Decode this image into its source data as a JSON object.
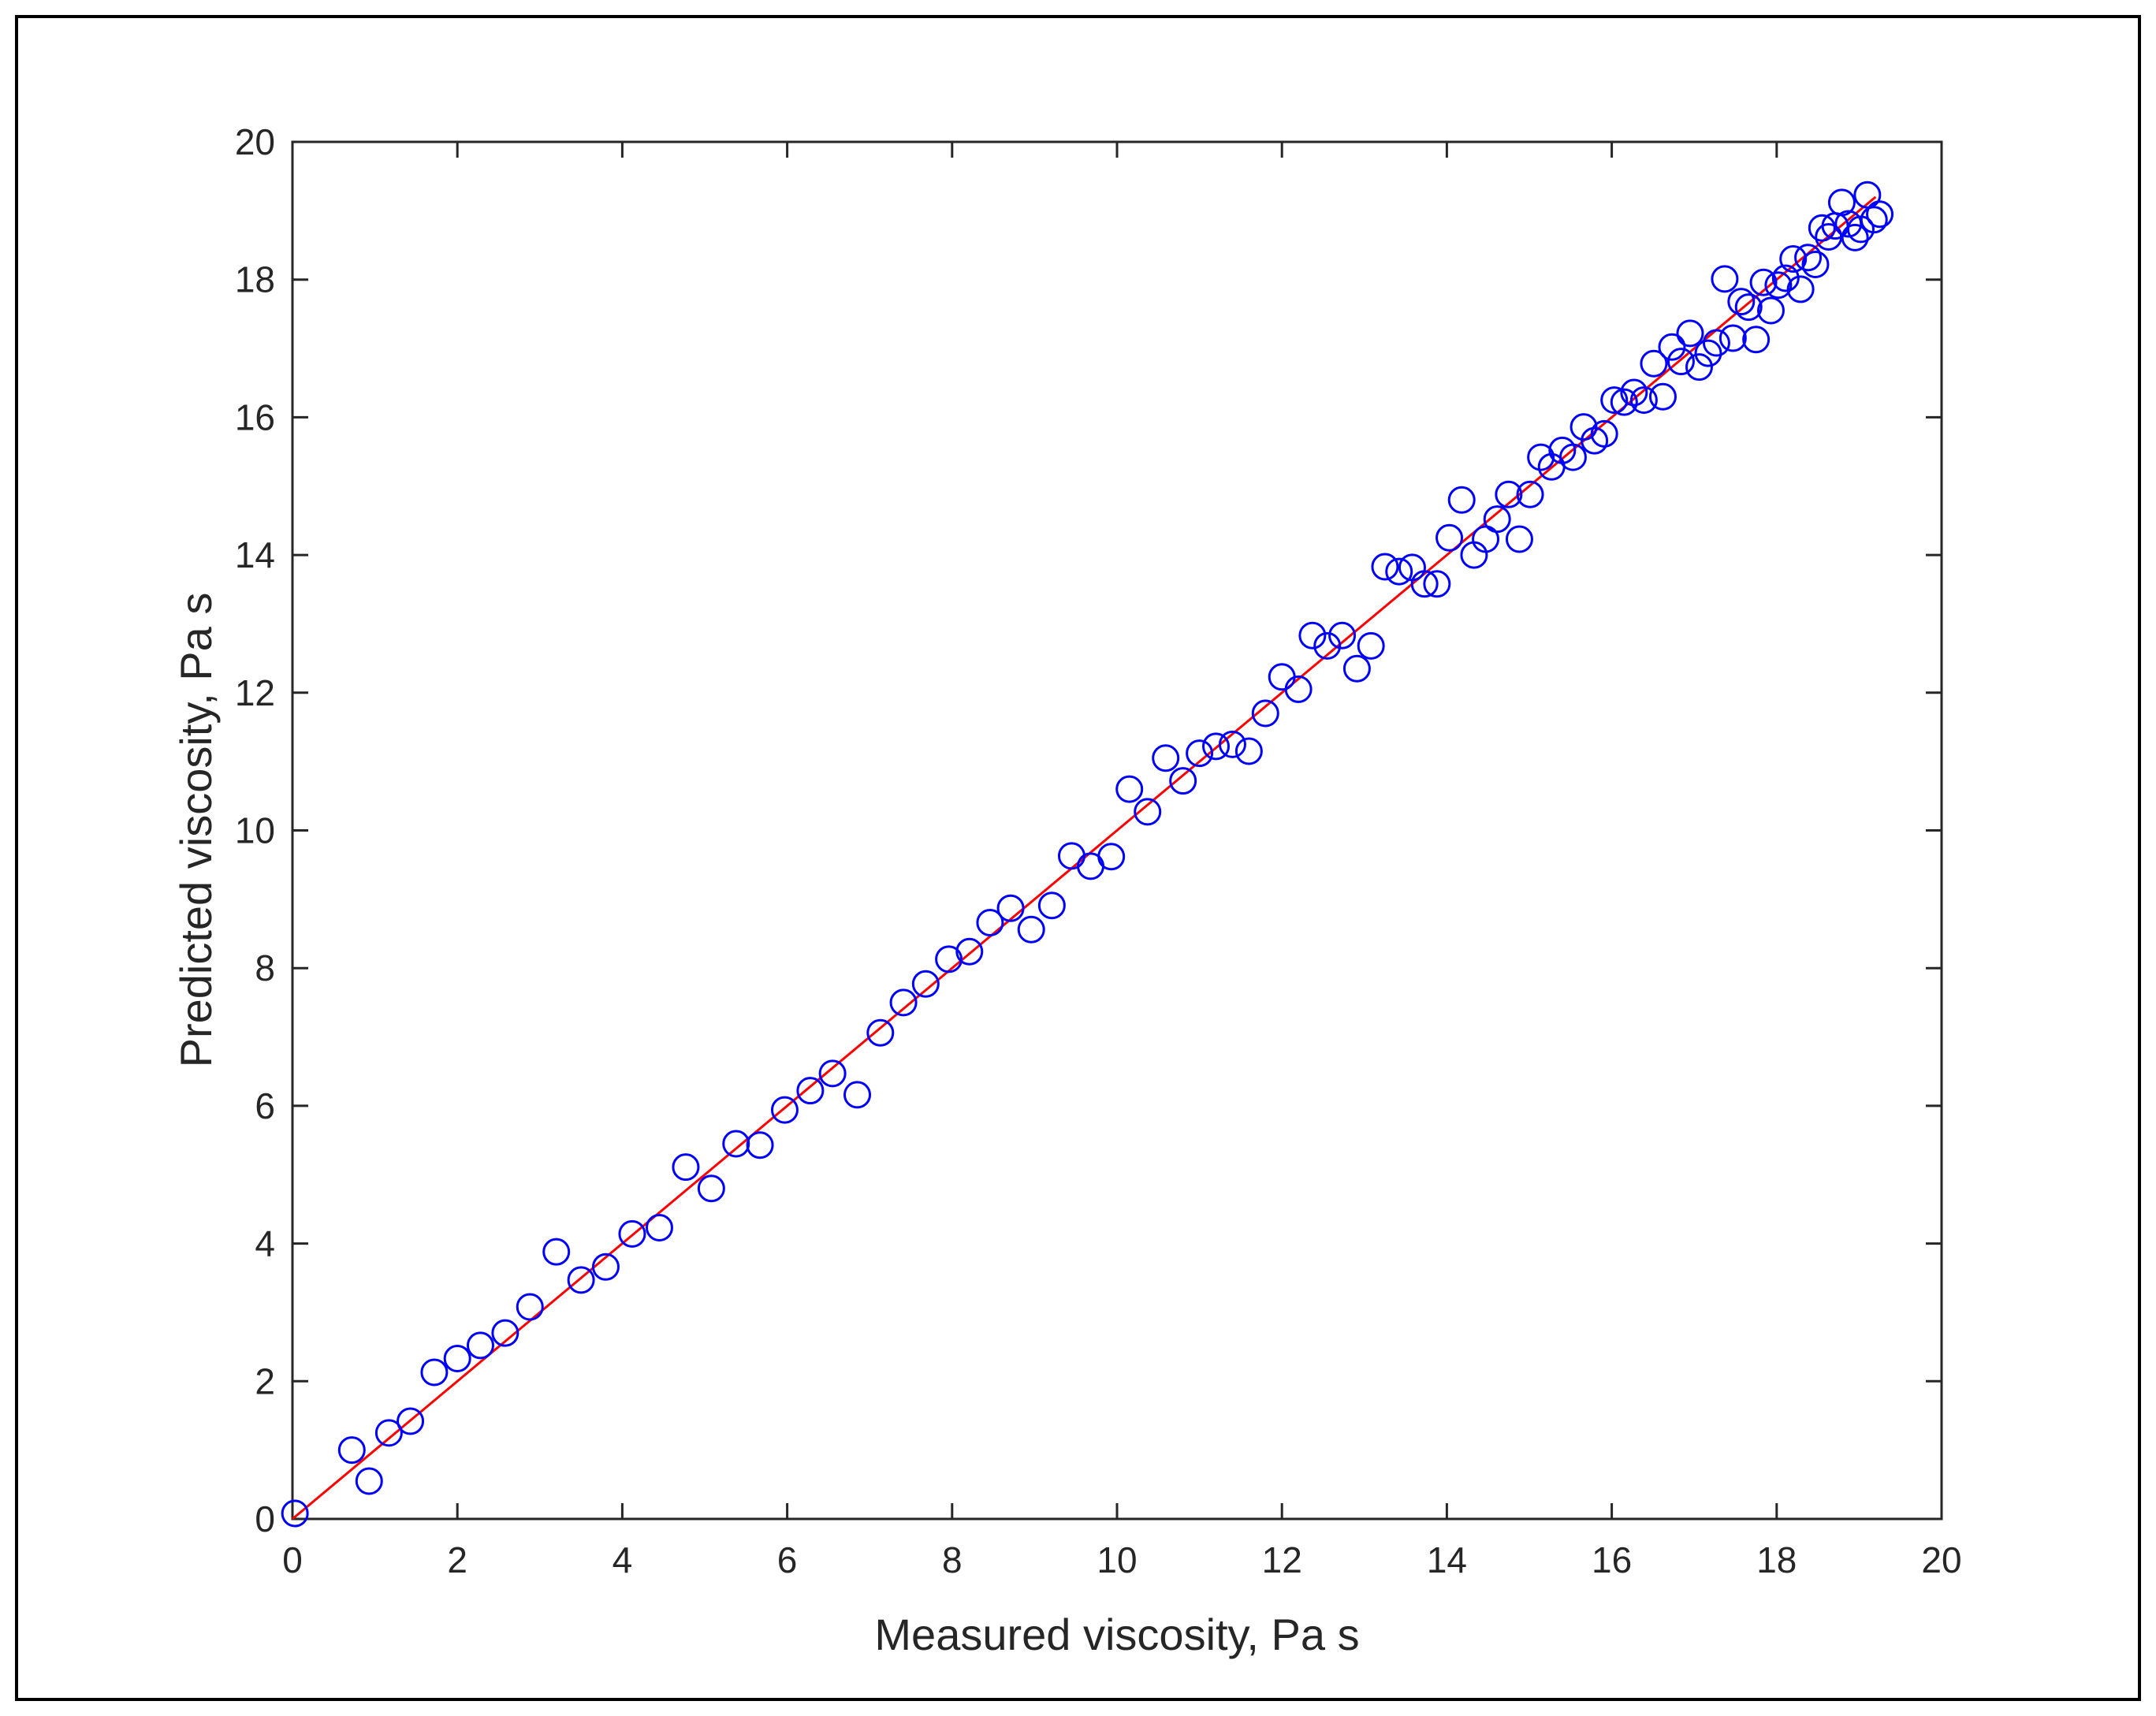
{
  "chart_data": {
    "type": "scatter",
    "xlabel": "Measured viscosity, Pa s",
    "ylabel": "Predicted viscosity, Pa s",
    "xlim": [
      0,
      20
    ],
    "ylim": [
      0,
      20
    ],
    "xticks": [
      "0",
      "2",
      "4",
      "6",
      "8",
      "10",
      "12",
      "14",
      "16",
      "18",
      "20"
    ],
    "yticks": [
      "0",
      "2",
      "4",
      "6",
      "8",
      "10",
      "12",
      "14",
      "16",
      "18",
      "20"
    ],
    "grid": false,
    "series": [
      {
        "marker": "circle",
        "color": "#0000ff",
        "points": [
          [
            0.03,
            0.08
          ],
          [
            0.72,
            1.0
          ],
          [
            0.93,
            0.55
          ],
          [
            1.17,
            1.25
          ],
          [
            1.43,
            1.42
          ],
          [
            1.72,
            2.13
          ],
          [
            2.0,
            2.33
          ],
          [
            2.28,
            2.52
          ],
          [
            2.58,
            2.7
          ],
          [
            2.88,
            3.08
          ],
          [
            3.2,
            3.88
          ],
          [
            3.5,
            3.47
          ],
          [
            3.8,
            3.66
          ],
          [
            4.12,
            4.14
          ],
          [
            4.45,
            4.23
          ],
          [
            4.77,
            5.11
          ],
          [
            5.08,
            4.8
          ],
          [
            5.38,
            5.45
          ],
          [
            5.67,
            5.43
          ],
          [
            5.97,
            5.94
          ],
          [
            6.28,
            6.22
          ],
          [
            6.55,
            6.47
          ],
          [
            6.85,
            6.16
          ],
          [
            7.13,
            7.06
          ],
          [
            7.41,
            7.5
          ],
          [
            7.68,
            7.77
          ],
          [
            7.96,
            8.13
          ],
          [
            8.21,
            8.24
          ],
          [
            8.46,
            8.66
          ],
          [
            8.71,
            8.87
          ],
          [
            8.96,
            8.56
          ],
          [
            9.21,
            8.91
          ],
          [
            9.45,
            9.63
          ],
          [
            9.68,
            9.48
          ],
          [
            9.93,
            9.62
          ],
          [
            10.15,
            10.6
          ],
          [
            10.37,
            10.27
          ],
          [
            10.59,
            11.05
          ],
          [
            10.8,
            10.72
          ],
          [
            11.0,
            11.12
          ],
          [
            11.2,
            11.22
          ],
          [
            11.4,
            11.25
          ],
          [
            11.6,
            11.15
          ],
          [
            11.8,
            11.7
          ],
          [
            12.0,
            12.23
          ],
          [
            12.2,
            12.05
          ],
          [
            12.37,
            12.83
          ],
          [
            12.55,
            12.68
          ],
          [
            12.73,
            12.83
          ],
          [
            12.91,
            12.35
          ],
          [
            13.08,
            12.68
          ],
          [
            13.25,
            13.83
          ],
          [
            13.42,
            13.76
          ],
          [
            13.58,
            13.82
          ],
          [
            13.73,
            13.58
          ],
          [
            13.88,
            13.58
          ],
          [
            14.03,
            14.25
          ],
          [
            14.18,
            14.8
          ],
          [
            14.33,
            14.0
          ],
          [
            14.47,
            14.23
          ],
          [
            14.61,
            14.52
          ],
          [
            14.75,
            14.88
          ],
          [
            14.88,
            14.23
          ],
          [
            15.01,
            14.88
          ],
          [
            15.14,
            15.42
          ],
          [
            15.27,
            15.28
          ],
          [
            15.4,
            15.52
          ],
          [
            15.53,
            15.42
          ],
          [
            15.66,
            15.86
          ],
          [
            15.79,
            15.66
          ],
          [
            15.91,
            15.76
          ],
          [
            16.03,
            16.25
          ],
          [
            16.15,
            16.22
          ],
          [
            16.27,
            16.36
          ],
          [
            16.39,
            16.25
          ],
          [
            16.51,
            16.78
          ],
          [
            16.62,
            16.3
          ],
          [
            16.73,
            17.02
          ],
          [
            16.84,
            16.81
          ],
          [
            16.95,
            17.22
          ],
          [
            17.06,
            16.73
          ],
          [
            17.17,
            16.93
          ],
          [
            17.27,
            17.08
          ],
          [
            17.37,
            18.01
          ],
          [
            17.47,
            17.15
          ],
          [
            17.57,
            17.68
          ],
          [
            17.66,
            17.6
          ],
          [
            17.75,
            17.13
          ],
          [
            17.84,
            17.96
          ],
          [
            17.93,
            17.55
          ],
          [
            18.02,
            17.92
          ],
          [
            18.11,
            18.02
          ],
          [
            18.2,
            18.3
          ],
          [
            18.29,
            17.86
          ],
          [
            18.38,
            18.32
          ],
          [
            18.47,
            18.22
          ],
          [
            18.55,
            18.75
          ],
          [
            18.63,
            18.62
          ],
          [
            18.71,
            18.78
          ],
          [
            18.79,
            19.12
          ],
          [
            18.87,
            18.81
          ],
          [
            18.95,
            18.61
          ],
          [
            19.02,
            18.73
          ],
          [
            19.1,
            19.23
          ],
          [
            19.18,
            18.87
          ],
          [
            19.25,
            18.95
          ]
        ]
      },
      {
        "type": "line",
        "color": "#ff0000",
        "x": [
          0,
          19.2
        ],
        "y": [
          0,
          19.2
        ]
      }
    ]
  }
}
